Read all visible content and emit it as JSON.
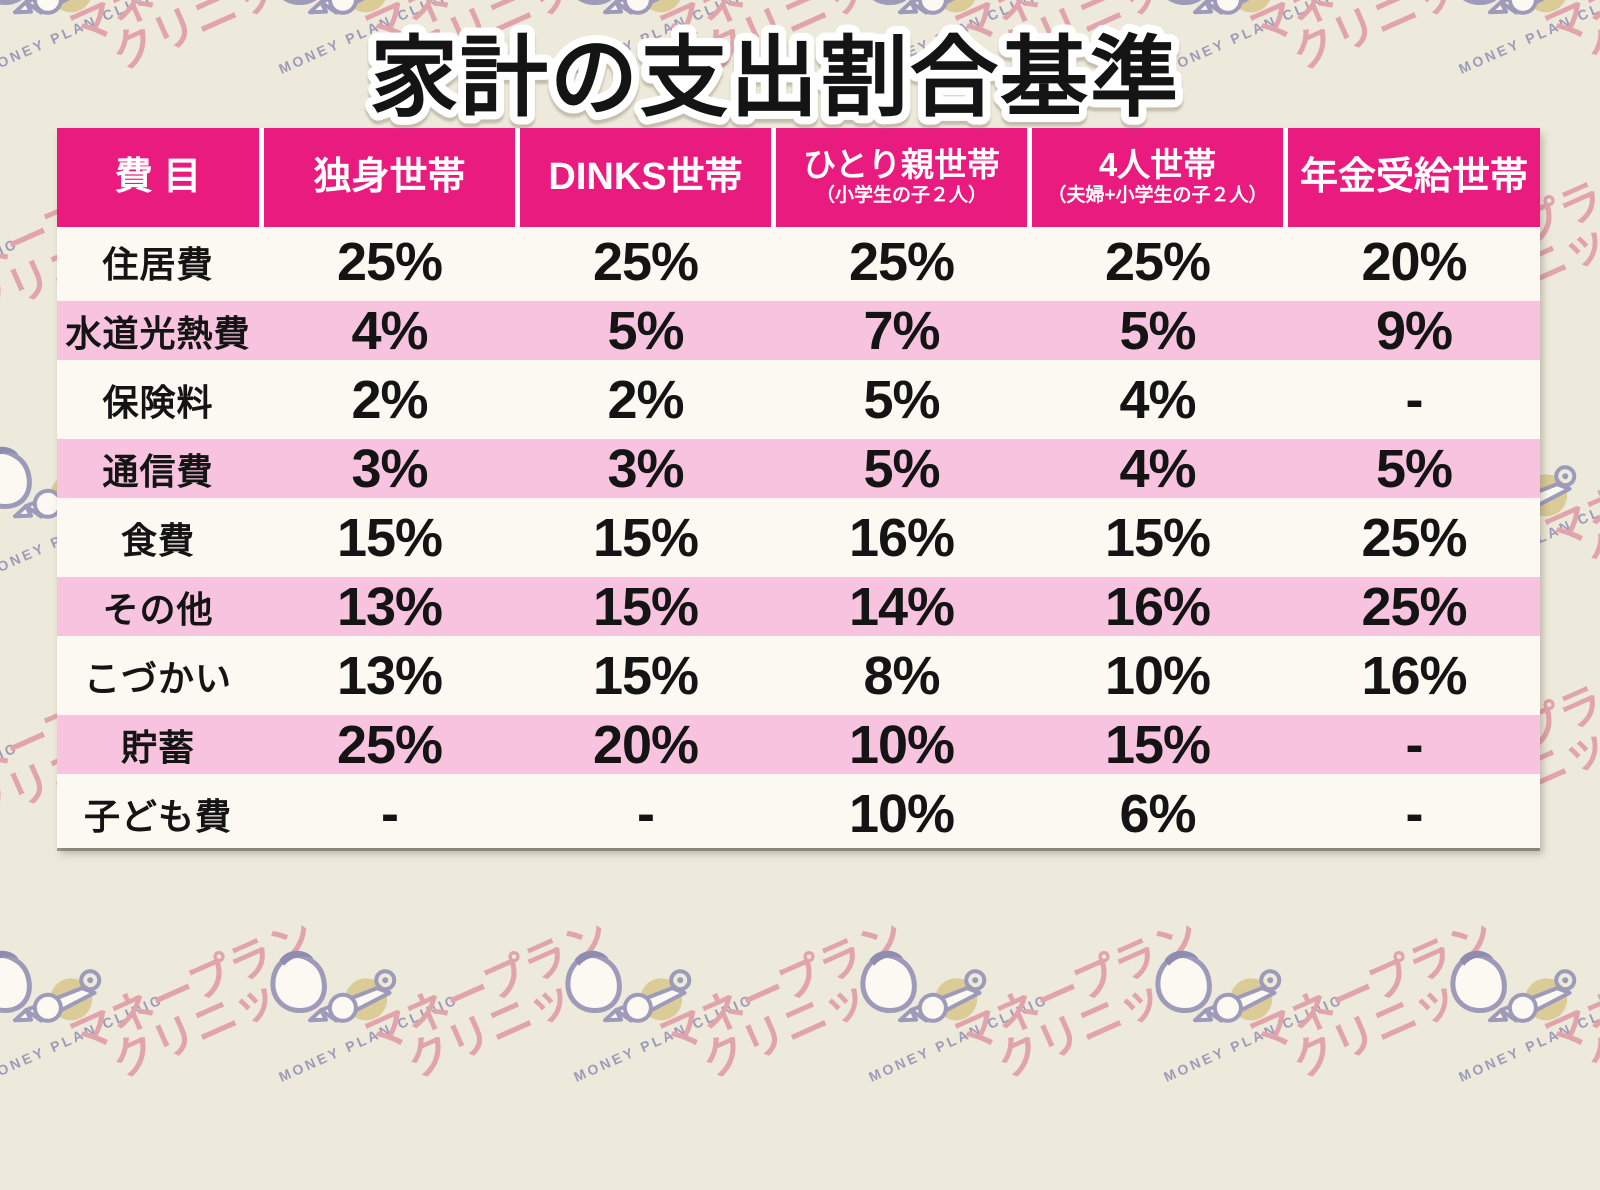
{
  "page": {
    "title": "家計の支出割合基準"
  },
  "brand": {
    "jp_line1": "マネープラン",
    "jp_line2": "クリニック",
    "en": "MONEY PLAN CLINIC"
  },
  "colors": {
    "page_bg": "#EDE9DB",
    "header_bg": "#EA1B7F",
    "header_text": "#FFFFFF",
    "row_pink": "#F7C3DE",
    "row_white": "#FBF9F1",
    "cell_text": "#141414",
    "title_fill": "#141414",
    "title_stroke": "#FFFFFF",
    "watermark_pink": "#E2A4AC",
    "watermark_purple": "#9D9BB9",
    "watermark_coin": "#DACB97"
  },
  "chart_data": {
    "type": "table",
    "title": "家計の支出割合基準",
    "columns": [
      {
        "main": "費 目",
        "sub": ""
      },
      {
        "main": "独身世帯",
        "sub": ""
      },
      {
        "main": "DINKS世帯",
        "sub": ""
      },
      {
        "main": "ひとり親世帯",
        "sub": "（小学生の子２人）"
      },
      {
        "main": "4人世帯",
        "sub": "（夫婦+小学生の子２人）"
      },
      {
        "main": "年金受給世帯",
        "sub": ""
      }
    ],
    "rows": [
      {
        "label": "住居費",
        "values": [
          "25%",
          "25%",
          "25%",
          "25%",
          "20%"
        ]
      },
      {
        "label": "水道光熱費",
        "values": [
          "4%",
          "5%",
          "7%",
          "5%",
          "9%"
        ]
      },
      {
        "label": "保険料",
        "values": [
          "2%",
          "2%",
          "5%",
          "4%",
          "-"
        ]
      },
      {
        "label": "通信費",
        "values": [
          "3%",
          "3%",
          "5%",
          "4%",
          "5%"
        ]
      },
      {
        "label": "食費",
        "values": [
          "15%",
          "15%",
          "16%",
          "15%",
          "25%"
        ]
      },
      {
        "label": "その他",
        "values": [
          "13%",
          "15%",
          "14%",
          "16%",
          "25%"
        ]
      },
      {
        "label": "こづかい",
        "values": [
          "13%",
          "15%",
          "8%",
          "10%",
          "16%"
        ]
      },
      {
        "label": "貯蓄",
        "values": [
          "25%",
          "20%",
          "10%",
          "15%",
          "-"
        ]
      },
      {
        "label": "子ども費",
        "values": [
          "-",
          "-",
          "10%",
          "6%",
          "-"
        ]
      }
    ]
  }
}
